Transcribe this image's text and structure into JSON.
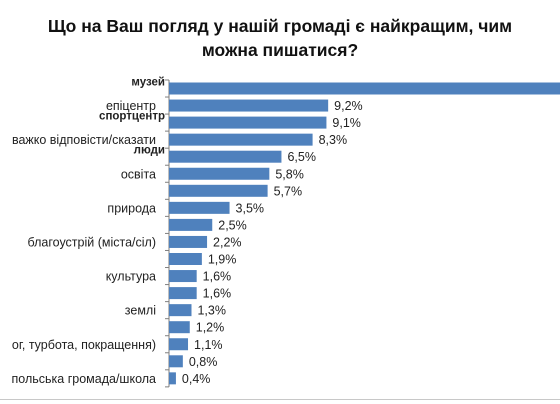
{
  "title_lines": [
    "Що на Ваш погляд у нашій громаді є найкращим, чим",
    "можна пишатися?"
  ],
  "chart_data": {
    "type": "bar",
    "orientation": "horizontal",
    "title": "Що на Ваш погляд у нашій громаді є найкращим, чим можна пишатися?",
    "categories": [
      "музей",
      "епіцентр",
      "спортцентр",
      "важко відповісти/сказати",
      "люди",
      "освіта",
      "",
      "природа",
      "",
      "благоустрій (міста/сіл)",
      "",
      "культура",
      "",
      "землі",
      "",
      "ог, турбота, покращення)",
      "",
      "польська громада/школа"
    ],
    "bold_categories": [
      "музей",
      "спортцентр",
      "люди"
    ],
    "values": [
      null,
      9.2,
      9.1,
      8.3,
      6.5,
      5.8,
      5.7,
      3.5,
      2.5,
      2.2,
      1.9,
      1.6,
      1.6,
      1.3,
      1.2,
      1.1,
      0.8,
      0.4
    ],
    "value_labels": [
      "",
      "9,2%",
      "9,1%",
      "8,3%",
      "6,5%",
      "5,8%",
      "5,7%",
      "3,5%",
      "2,5%",
      "2,2%",
      "1,9%",
      "1,6%",
      "1,6%",
      "1,3%",
      "1,2%",
      "1,1%",
      "0,8%",
      "0,4%"
    ],
    "first_bar_extends_beyond_view": true,
    "grid": false,
    "legend": "none",
    "bar_color": "#4f81bd"
  }
}
